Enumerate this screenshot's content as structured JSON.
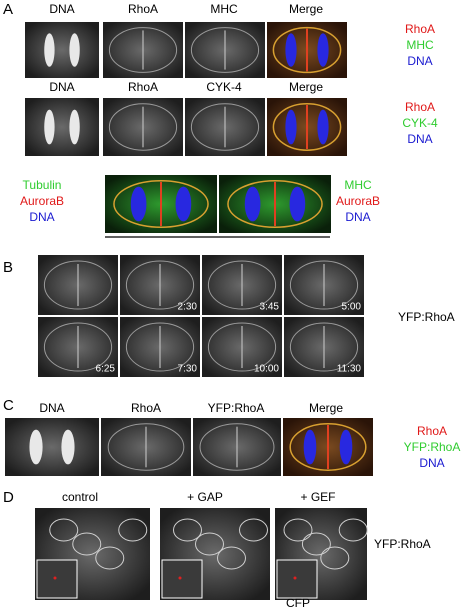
{
  "panel_a": {
    "label": "A",
    "row1": {
      "headers": [
        "DNA",
        "RhoA",
        "MHC",
        "Merge"
      ],
      "legend": [
        "RhoA",
        "MHC",
        "DNA"
      ]
    },
    "row2": {
      "headers": [
        "DNA",
        "RhoA",
        "CYK-4",
        "Merge"
      ],
      "legend": [
        "RhoA",
        "CYK-4",
        "DNA"
      ]
    },
    "row3": {
      "left_legend": [
        "Tubulin",
        "AuroraB",
        "DNA"
      ],
      "right_legend": [
        "MHC",
        "AuroraB",
        "DNA"
      ]
    }
  },
  "panel_b": {
    "label": "B",
    "timestamps": [
      "2:30",
      "3:45",
      "5:00",
      "6:25",
      "7:30",
      "10:00",
      "11:30"
    ],
    "side_label": "YFP:RhoA"
  },
  "panel_c": {
    "label": "C",
    "headers": [
      "DNA",
      "RhoA",
      "YFP:RhoA",
      "Merge"
    ],
    "legend": [
      "RhoA",
      "YFP:RhoA",
      "DNA"
    ]
  },
  "panel_d": {
    "label": "D",
    "headers": [
      "control",
      "+ GAP",
      "+ GEF"
    ],
    "side_label": "YFP:RhoA",
    "inset_label": "CFP"
  }
}
